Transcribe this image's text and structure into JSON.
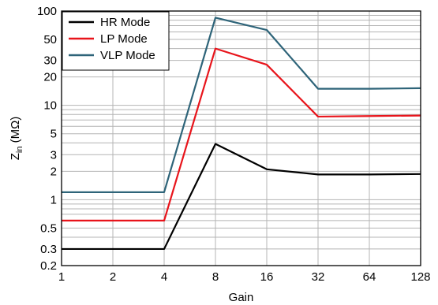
{
  "chart_data": {
    "type": "line",
    "title": "",
    "xlabel": "Gain",
    "ylabel_main": "Z",
    "ylabel_sub": "in",
    "ylabel_unit": "(MΩ)",
    "y_scale": "log",
    "ylim": [
      0.2,
      100
    ],
    "x_scale": "log2",
    "categories": [
      "1",
      "2",
      "4",
      "8",
      "16",
      "32",
      "64",
      "128"
    ],
    "x": [
      1,
      2,
      4,
      8,
      16,
      32,
      64,
      128
    ],
    "y_ticks": [
      0.2,
      0.3,
      0.5,
      1,
      2,
      3,
      5,
      10,
      20,
      30,
      50,
      100
    ],
    "y_tick_labels": [
      "0.2",
      "0.3",
      "0.5",
      "1",
      "2",
      "3",
      "5",
      "10",
      "20",
      "30",
      "50",
      "100"
    ],
    "grid": true,
    "legend_position": "top-left",
    "series": [
      {
        "name": "HR Mode",
        "color": "#000000",
        "values": [
          0.3,
          0.3,
          0.3,
          3.9,
          2.1,
          1.85,
          1.85,
          1.87
        ]
      },
      {
        "name": "LP Mode",
        "color": "#e8141b",
        "values": [
          0.6,
          0.6,
          0.6,
          40,
          27,
          7.6,
          7.7,
          7.8
        ]
      },
      {
        "name": "VLP Mode",
        "color": "#2e6479",
        "values": [
          1.2,
          1.2,
          1.2,
          85,
          63,
          15,
          15,
          15.2
        ]
      }
    ]
  }
}
